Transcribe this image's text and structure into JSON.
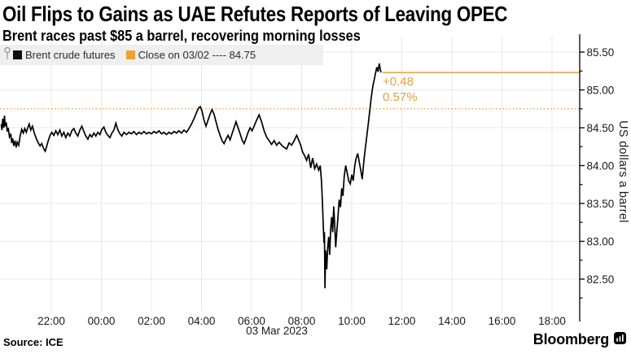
{
  "title": "Oil Flips to Gains as UAE Refutes Reports of Leaving OPEC",
  "subtitle": "Brent races past $85 a barrel, recovering morning losses",
  "legend": {
    "series1": {
      "label": "Brent crude futures",
      "color": "#0d0d0d"
    },
    "series2": {
      "label": "Close on 03/02 ---- 84.75",
      "color": "#f0a231"
    }
  },
  "annotation": {
    "change": "+0.48",
    "percent": "0.57%"
  },
  "y_axis_label": "US dollars a barrel",
  "source": "Source: ICE",
  "brand": "Bloomberg",
  "colors": {
    "accent_orange": "#e3a042",
    "price_line": "#000000",
    "grid": "#e8e8e8",
    "axis": "#000000",
    "legend_bg": "#efefef",
    "tick_text": "#1a1a1a"
  },
  "chart_data": {
    "type": "line",
    "title": "Oil Flips to Gains as UAE Refutes Reports of Leaving OPEC",
    "series_name": "Brent crude futures",
    "ylabel": "US dollars a barrel",
    "ylim": [
      82.25,
      85.75
    ],
    "grid": true,
    "legend_position": "top-left",
    "y_tick_labels": [
      "85.50",
      "85.00",
      "84.50",
      "84.00",
      "83.50",
      "83.00",
      "82.50"
    ],
    "y_ticks": [
      85.5,
      85.0,
      84.5,
      84.0,
      83.5,
      83.0,
      82.5
    ],
    "y_minor_ticks": [
      85.25,
      84.75,
      84.25,
      83.75,
      83.25,
      82.75,
      82.25
    ],
    "x_tick_labels": [
      "22:00",
      "00:00",
      "02:00",
      "04:00",
      "06:00",
      "08:00",
      "10:00",
      "12:00",
      "14:00",
      "16:00",
      "18:00"
    ],
    "x_tick_hours": [
      2,
      4,
      6,
      8,
      10,
      12,
      14,
      16,
      18,
      20,
      22
    ],
    "date_label": "03 Mar 2023",
    "close_line": {
      "value": 84.75,
      "label": "Close on 03/02 ---- 84.75"
    },
    "last_price_line": {
      "value": 85.23,
      "change": "+0.48",
      "percent": "0.57%"
    },
    "points_unit": "t = hours elapsed since chart start (~20:00, 02 Mar); price = USD per barrel",
    "points": [
      [
        0.0,
        84.55
      ],
      [
        0.03,
        84.47
      ],
      [
        0.06,
        84.62
      ],
      [
        0.1,
        84.5
      ],
      [
        0.13,
        84.66
      ],
      [
        0.16,
        84.52
      ],
      [
        0.2,
        84.57
      ],
      [
        0.24,
        84.45
      ],
      [
        0.28,
        84.5
      ],
      [
        0.33,
        84.38
      ],
      [
        0.38,
        84.42
      ],
      [
        0.42,
        84.3
      ],
      [
        0.46,
        84.36
      ],
      [
        0.5,
        84.26
      ],
      [
        0.55,
        84.33
      ],
      [
        0.6,
        84.24
      ],
      [
        0.64,
        84.31
      ],
      [
        0.7,
        84.27
      ],
      [
        0.76,
        84.4
      ],
      [
        0.82,
        84.48
      ],
      [
        0.88,
        84.43
      ],
      [
        0.94,
        84.49
      ],
      [
        1.0,
        84.44
      ],
      [
        1.06,
        84.5
      ],
      [
        1.12,
        84.55
      ],
      [
        1.18,
        84.47
      ],
      [
        1.25,
        84.52
      ],
      [
        1.32,
        84.43
      ],
      [
        1.4,
        84.36
      ],
      [
        1.48,
        84.3
      ],
      [
        1.55,
        84.26
      ],
      [
        1.62,
        84.29
      ],
      [
        1.7,
        84.22
      ],
      [
        1.76,
        84.19
      ],
      [
        1.82,
        84.26
      ],
      [
        1.88,
        84.33
      ],
      [
        1.95,
        84.4
      ],
      [
        2.02,
        84.44
      ],
      [
        2.1,
        84.4
      ],
      [
        2.18,
        84.46
      ],
      [
        2.26,
        84.41
      ],
      [
        2.34,
        84.47
      ],
      [
        2.42,
        84.39
      ],
      [
        2.5,
        84.44
      ],
      [
        2.58,
        84.37
      ],
      [
        2.66,
        84.43
      ],
      [
        2.74,
        84.39
      ],
      [
        2.82,
        84.46
      ],
      [
        2.9,
        84.49
      ],
      [
        2.98,
        84.43
      ],
      [
        3.06,
        84.39
      ],
      [
        3.14,
        84.47
      ],
      [
        3.22,
        84.52
      ],
      [
        3.3,
        84.45
      ],
      [
        3.38,
        84.39
      ],
      [
        3.46,
        84.35
      ],
      [
        3.54,
        84.41
      ],
      [
        3.62,
        84.38
      ],
      [
        3.7,
        84.43
      ],
      [
        3.78,
        84.39
      ],
      [
        3.86,
        84.44
      ],
      [
        3.94,
        84.41
      ],
      [
        4.02,
        84.48
      ],
      [
        4.1,
        84.51
      ],
      [
        4.18,
        84.44
      ],
      [
        4.26,
        84.4
      ],
      [
        4.34,
        84.37
      ],
      [
        4.42,
        84.43
      ],
      [
        4.5,
        84.47
      ],
      [
        4.58,
        84.56
      ],
      [
        4.66,
        84.47
      ],
      [
        4.74,
        84.42
      ],
      [
        4.82,
        84.39
      ],
      [
        4.9,
        84.44
      ],
      [
        5.0,
        84.41
      ],
      [
        5.1,
        84.44
      ],
      [
        5.2,
        84.42
      ],
      [
        5.3,
        84.45
      ],
      [
        5.4,
        84.41
      ],
      [
        5.5,
        84.44
      ],
      [
        5.6,
        84.42
      ],
      [
        5.7,
        84.45
      ],
      [
        5.8,
        84.42
      ],
      [
        5.9,
        84.44
      ],
      [
        6.0,
        84.42
      ],
      [
        6.1,
        84.45
      ],
      [
        6.2,
        84.43
      ],
      [
        6.3,
        84.46
      ],
      [
        6.4,
        84.42
      ],
      [
        6.5,
        84.44
      ],
      [
        6.6,
        84.41
      ],
      [
        6.7,
        84.44
      ],
      [
        6.8,
        84.42
      ],
      [
        6.9,
        84.45
      ],
      [
        7.0,
        84.43
      ],
      [
        7.1,
        84.46
      ],
      [
        7.2,
        84.43
      ],
      [
        7.3,
        84.47
      ],
      [
        7.4,
        84.44
      ],
      [
        7.5,
        84.49
      ],
      [
        7.6,
        84.55
      ],
      [
        7.7,
        84.62
      ],
      [
        7.8,
        84.7
      ],
      [
        7.88,
        84.76
      ],
      [
        7.95,
        84.78
      ],
      [
        8.02,
        84.72
      ],
      [
        8.1,
        84.6
      ],
      [
        8.18,
        84.52
      ],
      [
        8.26,
        84.6
      ],
      [
        8.34,
        84.68
      ],
      [
        8.42,
        84.74
      ],
      [
        8.5,
        84.68
      ],
      [
        8.58,
        84.58
      ],
      [
        8.66,
        84.48
      ],
      [
        8.74,
        84.4
      ],
      [
        8.82,
        84.33
      ],
      [
        8.9,
        84.29
      ],
      [
        8.98,
        84.35
      ],
      [
        9.06,
        84.4
      ],
      [
        9.14,
        84.34
      ],
      [
        9.22,
        84.42
      ],
      [
        9.3,
        84.5
      ],
      [
        9.38,
        84.58
      ],
      [
        9.46,
        84.5
      ],
      [
        9.54,
        84.42
      ],
      [
        9.62,
        84.34
      ],
      [
        9.7,
        84.29
      ],
      [
        9.78,
        84.36
      ],
      [
        9.86,
        84.44
      ],
      [
        9.94,
        84.5
      ],
      [
        10.02,
        84.46
      ],
      [
        10.1,
        84.52
      ],
      [
        10.2,
        84.6
      ],
      [
        10.3,
        84.67
      ],
      [
        10.4,
        84.58
      ],
      [
        10.5,
        84.46
      ],
      [
        10.6,
        84.38
      ],
      [
        10.7,
        84.33
      ],
      [
        10.8,
        84.28
      ],
      [
        10.9,
        84.33
      ],
      [
        11.0,
        84.27
      ],
      [
        11.1,
        84.31
      ],
      [
        11.2,
        84.27
      ],
      [
        11.3,
        84.24
      ],
      [
        11.4,
        84.22
      ],
      [
        11.5,
        84.3
      ],
      [
        11.6,
        84.27
      ],
      [
        11.7,
        84.33
      ],
      [
        11.8,
        84.4
      ],
      [
        11.88,
        84.34
      ],
      [
        11.96,
        84.27
      ],
      [
        12.04,
        84.18
      ],
      [
        12.12,
        84.13
      ],
      [
        12.2,
        84.07
      ],
      [
        12.28,
        84.15
      ],
      [
        12.36,
        83.97
      ],
      [
        12.44,
        84.1
      ],
      [
        12.52,
        83.96
      ],
      [
        12.6,
        84.02
      ],
      [
        12.68,
        83.94
      ],
      [
        12.74,
        84.0
      ],
      [
        12.79,
        83.8
      ],
      [
        12.83,
        83.52
      ],
      [
        12.86,
        83.25
      ],
      [
        12.89,
        82.98
      ],
      [
        12.91,
        83.12
      ],
      [
        12.93,
        82.38
      ],
      [
        12.96,
        82.88
      ],
      [
        13.0,
        82.63
      ],
      [
        13.04,
        82.92
      ],
      [
        13.08,
        83.06
      ],
      [
        13.12,
        82.82
      ],
      [
        13.16,
        83.18
      ],
      [
        13.2,
        83.32
      ],
      [
        13.24,
        83.12
      ],
      [
        13.28,
        83.46
      ],
      [
        13.32,
        83.22
      ],
      [
        13.36,
        82.92
      ],
      [
        13.4,
        83.12
      ],
      [
        13.45,
        83.32
      ],
      [
        13.5,
        83.55
      ],
      [
        13.55,
        83.45
      ],
      [
        13.6,
        83.7
      ],
      [
        13.65,
        83.6
      ],
      [
        13.7,
        83.86
      ],
      [
        13.76,
        84.0
      ],
      [
        13.82,
        83.9
      ],
      [
        13.88,
        83.8
      ],
      [
        13.94,
        83.76
      ],
      [
        14.0,
        83.88
      ],
      [
        14.06,
        83.8
      ],
      [
        14.12,
        84.0
      ],
      [
        14.18,
        84.1
      ],
      [
        14.24,
        84.16
      ],
      [
        14.3,
        84.05
      ],
      [
        14.36,
        83.94
      ],
      [
        14.42,
        83.82
      ],
      [
        14.48,
        84.05
      ],
      [
        14.54,
        84.22
      ],
      [
        14.6,
        84.38
      ],
      [
        14.66,
        84.55
      ],
      [
        14.72,
        84.72
      ],
      [
        14.78,
        84.9
      ],
      [
        14.84,
        85.04
      ],
      [
        14.9,
        85.14
      ],
      [
        14.95,
        85.22
      ],
      [
        15.0,
        85.3
      ],
      [
        15.05,
        85.24
      ],
      [
        15.1,
        85.35
      ],
      [
        15.14,
        85.27
      ],
      [
        15.17,
        85.23
      ]
    ]
  }
}
